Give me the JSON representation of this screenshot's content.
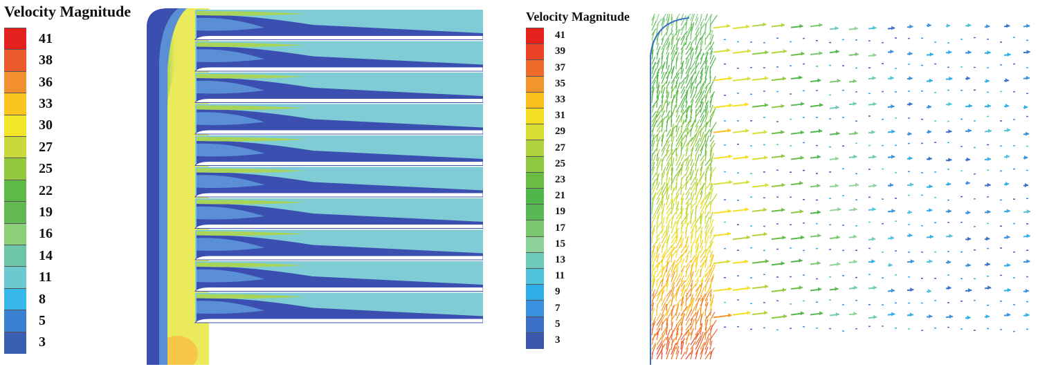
{
  "left_panel": {
    "title": "Velocity Magnitude",
    "legend_labels": [
      "41",
      "38",
      "36",
      "33",
      "30",
      "27",
      "25",
      "22",
      "19",
      "16",
      "14",
      "11",
      "8",
      "5",
      "3"
    ],
    "legend_colors": [
      "#e5211d",
      "#ea5a2a",
      "#f28f2e",
      "#f9c51e",
      "#f2e52a",
      "#c8d93b",
      "#94c83e",
      "#5fb946",
      "#62b952",
      "#8dcf78",
      "#6cc5a7",
      "#6dc8d0",
      "#37b8ea",
      "#3a7fd0",
      "#3b5fb0"
    ]
  },
  "right_panel": {
    "title": "Velocity Magnitude",
    "legend_labels": [
      "41",
      "39",
      "37",
      "35",
      "33",
      "31",
      "29",
      "27",
      "25",
      "23",
      "21",
      "19",
      "17",
      "15",
      "13",
      "11",
      "9",
      "7",
      "5",
      "3"
    ],
    "legend_colors": [
      "#e5211d",
      "#ea4326",
      "#ee6a2a",
      "#f4952c",
      "#f9c01d",
      "#f4df22",
      "#d8df34",
      "#b1d33d",
      "#8fc940",
      "#69bd45",
      "#4fb649",
      "#58b855",
      "#7ac770",
      "#8fd39a",
      "#6fcbb9",
      "#4ec3d9",
      "#2eaee9",
      "#3890de",
      "#3a70c8",
      "#3a56ad"
    ]
  },
  "colors": {
    "slow": "#3b4fb0",
    "mid_slow": "#5a8fd6",
    "medium": "#7fcbd6",
    "fast": "#a9d45a",
    "faster": "#eaea5a",
    "peak": "#f7c548",
    "vane": "#ffffff"
  }
}
